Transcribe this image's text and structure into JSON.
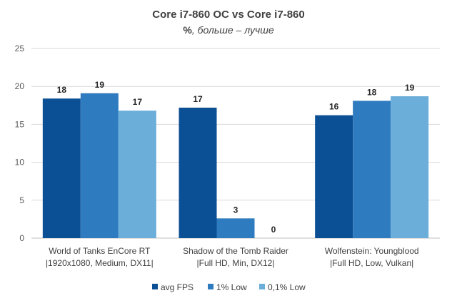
{
  "chart_data": {
    "type": "bar",
    "title": "Core i7-860 OC vs Core i7-860",
    "subtitle_bold": "%",
    "subtitle_rest": ", больше – лучше",
    "xlabel": "",
    "ylabel": "",
    "ylim": [
      0,
      25
    ],
    "yticks": [
      0,
      5,
      10,
      15,
      20,
      25
    ],
    "grid": true,
    "legend_position": "bottom",
    "categories": [
      [
        "World of Tanks EnCore RT",
        "|1920x1080, Medium, DX11|"
      ],
      [
        "Shadow of the Tomb Raider",
        "|Full HD, Min, DX12|"
      ],
      [
        "Wolfenstein: Youngblood",
        "|Full HD, Low, Vulkan|"
      ]
    ],
    "series": [
      {
        "name": "avg FPS",
        "color": "#0b4f94",
        "values": [
          18.4,
          17.2,
          16.2
        ],
        "labels": [
          "18",
          "17",
          "16"
        ]
      },
      {
        "name": "1% Low",
        "color": "#2e7bbf",
        "values": [
          19.1,
          2.6,
          18.1
        ],
        "labels": [
          "19",
          "3",
          "18"
        ]
      },
      {
        "name": "0,1% Low",
        "color": "#6aaed9",
        "values": [
          16.8,
          0,
          18.7
        ],
        "labels": [
          "17",
          "0",
          "19"
        ]
      }
    ]
  }
}
